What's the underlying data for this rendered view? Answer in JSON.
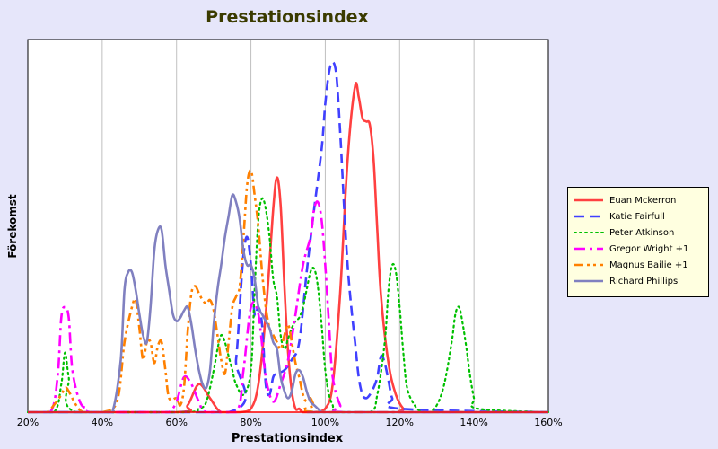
{
  "chart_data": {
    "type": "line",
    "title": "Prestationsindex",
    "xlabel": "Prestationsindex",
    "ylabel": "Förekomst",
    "x_ticks": [
      "20%",
      "40%",
      "60%",
      "80%",
      "100%",
      "120%",
      "140%",
      "160%"
    ],
    "xlim": [
      20,
      160
    ],
    "ylim": [
      0,
      1
    ],
    "grid": "vertical",
    "legend_position": "right",
    "series": [
      {
        "name": "Euan Mckerron",
        "color": "#ff4040",
        "dash": "solid",
        "x": [
          20,
          60,
          63,
          66,
          69,
          72,
          77,
          80,
          82,
          84,
          86,
          87,
          88,
          89,
          90,
          91,
          92,
          93,
          94,
          97,
          100,
          102,
          104,
          106,
          108,
          109,
          110,
          111,
          112,
          113,
          114,
          115,
          117,
          119,
          121,
          123,
          160
        ],
        "y": [
          0,
          0,
          0.02,
          0.08,
          0.04,
          0,
          0,
          0.01,
          0.08,
          0.28,
          0.58,
          0.67,
          0.59,
          0.36,
          0.17,
          0.06,
          0.01,
          0.01,
          0,
          0,
          0.01,
          0.08,
          0.34,
          0.72,
          0.93,
          0.9,
          0.84,
          0.83,
          0.82,
          0.72,
          0.52,
          0.33,
          0.14,
          0.05,
          0.01,
          0,
          0
        ]
      },
      {
        "name": "Katie Fairfull",
        "color": "#4040ff",
        "dash": "dash",
        "x": [
          20,
          74,
          76,
          77,
          78,
          79,
          80,
          81,
          82,
          83,
          84,
          85,
          86,
          87,
          89,
          91,
          93,
          95,
          97,
          99,
          100,
          101,
          102,
          103,
          104,
          105,
          106,
          107,
          108,
          109,
          110,
          111,
          112,
          113,
          114,
          115,
          116,
          117,
          118,
          120,
          160
        ],
        "y": [
          0,
          0,
          0.15,
          0.3,
          0.45,
          0.5,
          0.42,
          0.28,
          0.3,
          0.25,
          0.08,
          0.05,
          0.1,
          0.11,
          0.12,
          0.15,
          0.2,
          0.4,
          0.58,
          0.75,
          0.88,
          0.97,
          1.0,
          0.96,
          0.8,
          0.6,
          0.42,
          0.3,
          0.2,
          0.1,
          0.05,
          0.04,
          0.05,
          0.07,
          0.1,
          0.16,
          0.14,
          0.09,
          0.04,
          0.01,
          0
        ]
      },
      {
        "name": "Peter Atkinson",
        "color": "#00c000",
        "dash": "dot",
        "x": [
          20,
          27,
          29,
          30,
          31,
          33,
          62,
          66,
          68,
          70,
          71,
          72,
          73,
          74,
          75,
          76,
          78,
          80,
          81,
          82,
          83,
          84,
          85,
          86,
          87,
          88,
          89,
          90,
          91,
          92,
          93,
          94,
          95,
          96,
          97,
          98,
          99,
          100,
          101,
          102,
          103,
          112,
          114,
          116,
          117,
          118,
          119,
          120,
          121,
          122,
          124,
          126,
          128,
          130,
          132,
          134,
          135,
          136,
          137,
          138,
          139,
          140,
          141,
          160
        ],
        "y": [
          0,
          0,
          0.08,
          0.17,
          0.1,
          0,
          0,
          0.01,
          0.03,
          0.12,
          0.18,
          0.22,
          0.2,
          0.16,
          0.12,
          0.08,
          0.05,
          0.12,
          0.35,
          0.55,
          0.61,
          0.58,
          0.5,
          0.38,
          0.33,
          0.22,
          0.18,
          0.21,
          0.24,
          0.26,
          0.27,
          0.3,
          0.35,
          0.4,
          0.41,
          0.36,
          0.25,
          0.12,
          0.05,
          0.02,
          0,
          0,
          0.05,
          0.2,
          0.35,
          0.42,
          0.4,
          0.3,
          0.17,
          0.07,
          0.02,
          0,
          0,
          0.02,
          0.08,
          0.2,
          0.28,
          0.3,
          0.25,
          0.18,
          0.1,
          0.04,
          0.01,
          0
        ]
      },
      {
        "name": "Gregor Wright +1",
        "color": "#ff00ff",
        "dash": "dashdot",
        "x": [
          20,
          26,
          28,
          29,
          30,
          31,
          32,
          34,
          36,
          38,
          56,
          58,
          60,
          62,
          64,
          66,
          68,
          76,
          78,
          80,
          82,
          84,
          86,
          88,
          90,
          92,
          94,
          96,
          97,
          98,
          99,
          100,
          101,
          102,
          104,
          106,
          160
        ],
        "y": [
          0,
          0,
          0.1,
          0.27,
          0.3,
          0.27,
          0.12,
          0.03,
          0.01,
          0,
          0,
          0,
          0.03,
          0.1,
          0.08,
          0.03,
          0,
          0,
          0.12,
          0.3,
          0.28,
          0.1,
          0.03,
          0.08,
          0.15,
          0.28,
          0.42,
          0.5,
          0.58,
          0.6,
          0.55,
          0.42,
          0.25,
          0.1,
          0.02,
          0,
          0
        ]
      },
      {
        "name": "Magnus Bailie +1",
        "color": "#ff8000",
        "dash": "dashdotdot",
        "x": [
          20,
          25,
          27,
          29,
          30,
          31,
          33,
          35,
          40,
          44,
          46,
          48,
          49,
          50,
          51,
          52,
          53,
          54,
          55,
          56,
          57,
          58,
          60,
          61,
          62,
          63,
          64,
          65,
          66,
          67,
          68,
          69,
          70,
          71,
          72,
          73,
          74,
          75,
          76,
          77,
          78,
          79,
          80,
          81,
          82,
          83,
          84,
          85,
          86,
          87,
          88,
          89,
          90,
          91,
          92,
          93,
          94,
          95,
          96,
          97,
          99,
          160
        ],
        "y": [
          0,
          0,
          0.02,
          0.05,
          0.07,
          0.06,
          0.02,
          0,
          0,
          0.03,
          0.2,
          0.3,
          0.32,
          0.24,
          0.15,
          0.2,
          0.2,
          0.14,
          0.19,
          0.2,
          0.12,
          0.04,
          0.04,
          0.02,
          0.07,
          0.23,
          0.34,
          0.36,
          0.34,
          0.32,
          0.31,
          0.32,
          0.29,
          0.22,
          0.15,
          0.11,
          0.2,
          0.3,
          0.33,
          0.36,
          0.5,
          0.65,
          0.69,
          0.62,
          0.53,
          0.4,
          0.3,
          0.24,
          0.22,
          0.2,
          0.18,
          0.22,
          0.25,
          0.2,
          0.14,
          0.1,
          0.05,
          0.03,
          0.04,
          0.02,
          0,
          0
        ]
      },
      {
        "name": "Richard Phillips",
        "color": "#8080c0",
        "dash": "solid",
        "x": [
          20,
          41,
          43,
          45,
          46,
          47,
          48,
          49,
          50,
          51,
          52,
          53,
          54,
          55,
          56,
          57,
          58,
          59,
          60,
          61,
          62,
          63,
          64,
          65,
          66,
          67,
          68,
          69,
          70,
          71,
          72,
          73,
          74,
          75,
          76,
          77,
          78,
          79,
          80,
          81,
          82,
          83,
          84,
          85,
          86,
          87,
          88,
          89,
          90,
          91,
          92,
          93,
          94,
          95,
          96,
          97,
          98,
          99,
          100,
          160
        ],
        "y": [
          0,
          0,
          0.01,
          0.15,
          0.35,
          0.4,
          0.4,
          0.35,
          0.28,
          0.22,
          0.2,
          0.3,
          0.46,
          0.52,
          0.52,
          0.42,
          0.35,
          0.28,
          0.26,
          0.27,
          0.29,
          0.3,
          0.25,
          0.18,
          0.12,
          0.08,
          0.07,
          0.12,
          0.25,
          0.35,
          0.42,
          0.5,
          0.56,
          0.62,
          0.6,
          0.55,
          0.46,
          0.42,
          0.42,
          0.38,
          0.3,
          0.28,
          0.26,
          0.24,
          0.2,
          0.18,
          0.1,
          0.06,
          0.04,
          0.06,
          0.11,
          0.12,
          0.1,
          0.06,
          0.03,
          0.02,
          0.01,
          0,
          0,
          0
        ]
      }
    ]
  }
}
